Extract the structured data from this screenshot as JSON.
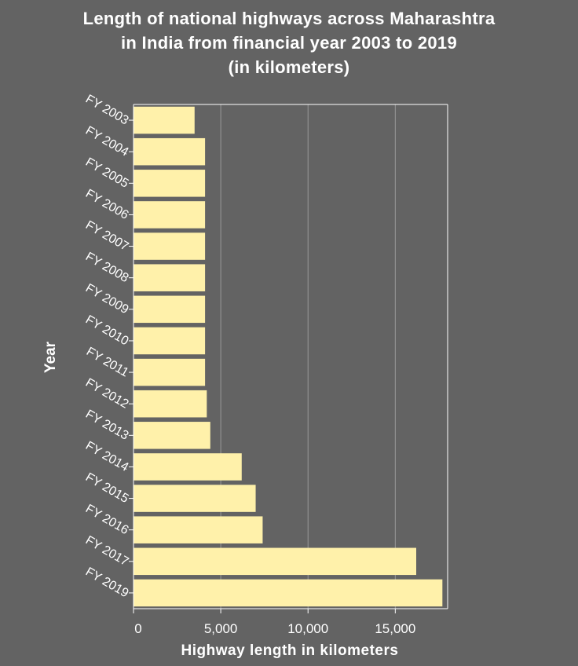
{
  "title_lines": [
    "Length of national highways across Maharashtra",
    "in India from financial year 2003 to 2019",
    "(in kilometers)"
  ],
  "colors": {
    "background": "#636363",
    "bar": "#fff1aa",
    "grid": "#9a9a9a",
    "axis": "#ffffff",
    "text": "#ffffff"
  },
  "chart_data": {
    "type": "bar",
    "orientation": "horizontal",
    "title": "Length of national highways across Maharashtra in India from financial year 2003 to 2019 (in kilometers)",
    "xlabel": "Highway length in kilometers",
    "ylabel": "Year",
    "xlim": [
      0,
      18000
    ],
    "xticks": [
      0,
      5000,
      10000,
      15000
    ],
    "xtick_labels": [
      "0",
      "5,000",
      "10,000",
      "15,000"
    ],
    "grid": "vertical",
    "categories": [
      "FY 2003",
      "FY 2004",
      "FY 2005",
      "FY 2006",
      "FY 2007",
      "FY 2008",
      "FY 2009",
      "FY 2010",
      "FY 2011",
      "FY 2012",
      "FY 2013",
      "FY 2014",
      "FY 2015",
      "FY 2016",
      "FY 2017",
      "FY 2019"
    ],
    "values": [
      3500,
      4100,
      4100,
      4100,
      4100,
      4100,
      4100,
      4100,
      4100,
      4200,
      4400,
      6200,
      7000,
      7400,
      16200,
      17700
    ]
  }
}
